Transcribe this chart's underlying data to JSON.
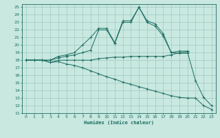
{
  "xlabel": "Humidex (Indice chaleur)",
  "bg_color": "#c8e8e0",
  "grid_color": "#a0c8c0",
  "line_color": "#1a6b60",
  "xlim": [
    -0.5,
    23.5
  ],
  "ylim": [
    11,
    25.4
  ],
  "xticks": [
    0,
    1,
    2,
    3,
    4,
    5,
    6,
    7,
    8,
    9,
    10,
    11,
    12,
    13,
    14,
    15,
    16,
    17,
    18,
    19,
    20,
    21,
    22,
    23
  ],
  "yticks": [
    11,
    12,
    13,
    14,
    15,
    16,
    17,
    18,
    19,
    20,
    21,
    22,
    23,
    24,
    25
  ],
  "line1_x": [
    0,
    1,
    2,
    3,
    4,
    5,
    6,
    7,
    8,
    9,
    10,
    11,
    12,
    13,
    14,
    15,
    16,
    17,
    18,
    19,
    20
  ],
  "line1_y": [
    18,
    18,
    18,
    18,
    18.5,
    18.7,
    19.0,
    20.0,
    21.0,
    22.2,
    22.2,
    20.3,
    23.2,
    23.2,
    25.0,
    23.2,
    22.8,
    21.5,
    19.0,
    19.2,
    19.2
  ],
  "line2_x": [
    0,
    1,
    2,
    3,
    4,
    5,
    6,
    7,
    8,
    9,
    10,
    11,
    12,
    13,
    14,
    15,
    16,
    17,
    18,
    19,
    20
  ],
  "line2_y": [
    18,
    18,
    18,
    18,
    18.3,
    18.5,
    18.7,
    19.0,
    19.3,
    22.0,
    22.0,
    20.2,
    23.0,
    23.0,
    25.0,
    23.0,
    22.5,
    21.2,
    19.0,
    18.9,
    18.9
  ],
  "line3_x": [
    0,
    1,
    2,
    3,
    4,
    5,
    6,
    7,
    8,
    9,
    10,
    11,
    12,
    13,
    14,
    15,
    16,
    17,
    18,
    19,
    20,
    21,
    22,
    23
  ],
  "line3_y": [
    18,
    18,
    18,
    17.7,
    18,
    18,
    18,
    18,
    18,
    18.2,
    18.3,
    18.4,
    18.4,
    18.5,
    18.5,
    18.5,
    18.5,
    18.5,
    18.7,
    19.0,
    19.1,
    15.3,
    13.1,
    12.0
  ],
  "line4_x": [
    0,
    1,
    2,
    3,
    4,
    5,
    6,
    7,
    8,
    9,
    10,
    11,
    12,
    13,
    14,
    15,
    16,
    17,
    18,
    19,
    20,
    21,
    22,
    23
  ],
  "line4_y": [
    18,
    18,
    18,
    17.7,
    17.8,
    17.5,
    17.3,
    17.0,
    16.6,
    16.2,
    15.8,
    15.5,
    15.1,
    14.8,
    14.5,
    14.2,
    13.9,
    13.6,
    13.3,
    13.1,
    13.0,
    13.0,
    12.0,
    11.5
  ]
}
